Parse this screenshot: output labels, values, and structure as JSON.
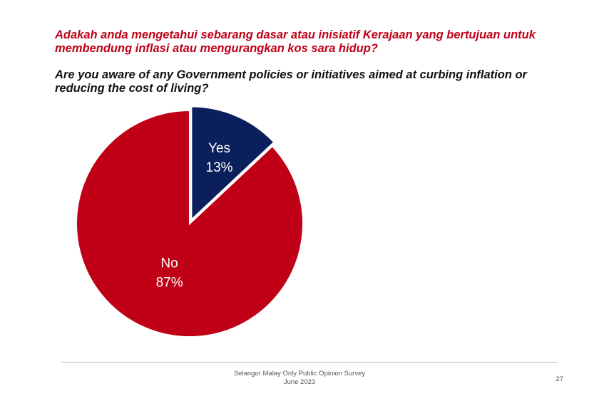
{
  "slide": {
    "title_malay": "Adakah anda mengetahui sebarang dasar atau inisiatif Kerajaan yang bertujuan untuk membendung inflasi atau mengurangkan kos sara hidup?",
    "title_english": "Are you aware of any Government policies or initiatives aimed at curbing inflation or reducing the cost of living?",
    "footer_line1": "Selangor Malay Only Public Opinion Survey",
    "footer_line2": "June 2023",
    "page_number": "27"
  },
  "chart_data": {
    "type": "pie",
    "title": "Are you aware of any Government policies or initiatives aimed at curbing inflation or reducing the cost of living?",
    "slices": [
      {
        "label": "Yes",
        "value": 13,
        "value_label": "13%",
        "color": "#0b1f5c",
        "exploded": true
      },
      {
        "label": "No",
        "value": 87,
        "value_label": "87%",
        "color": "#c00017",
        "exploded": false
      }
    ],
    "legend": "none"
  }
}
